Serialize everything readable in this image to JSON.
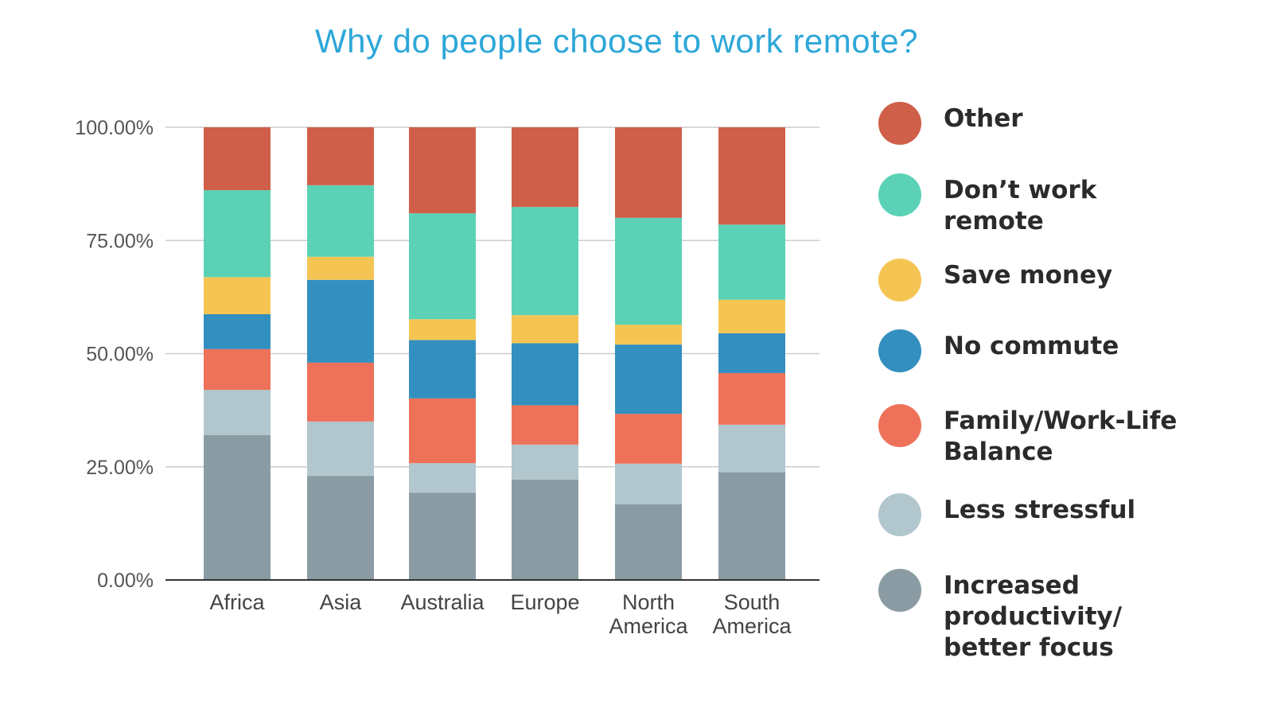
{
  "chart_data": {
    "type": "bar",
    "stacked": true,
    "title": "Why do people choose to work remote?",
    "categories": [
      "Africa",
      "Asia",
      "Australia",
      "Europe",
      "North\nAmerica",
      "South\nAmerica"
    ],
    "ylim": [
      0,
      100
    ],
    "yticks": [
      0,
      25,
      50,
      75,
      100
    ],
    "ytick_labels": [
      "0.00%",
      "25.00%",
      "50.00%",
      "75.00%",
      "100.00%"
    ],
    "xlabel": "",
    "ylabel": "",
    "grid": true,
    "legend_position": "right",
    "series": [
      {
        "name": "Increased productivity/ better focus",
        "legend_lines": [
          "Increased",
          "productivity/",
          "better focus"
        ],
        "color": "#8a9ba3",
        "values": [
          32,
          23,
          19.3,
          22.2,
          16.7,
          23.8
        ]
      },
      {
        "name": "Less stressful",
        "legend_lines": [
          "Less stressful"
        ],
        "color": "#b1c6cd",
        "values": [
          10,
          12,
          6.5,
          7.7,
          9,
          10.5
        ]
      },
      {
        "name": "Family/Work-Life Balance",
        "legend_lines": [
          "Family/Work-Life",
          "Balance"
        ],
        "color": "#ee7159",
        "values": [
          9,
          13,
          14.3,
          8.7,
          11,
          11.4
        ]
      },
      {
        "name": "No commute",
        "legend_lines": [
          "No commute"
        ],
        "color": "#338fbf",
        "values": [
          7.7,
          18.3,
          12.9,
          13.7,
          15.3,
          8.8
        ]
      },
      {
        "name": "Save money",
        "legend_lines": [
          "Save money"
        ],
        "color": "#f5c554",
        "values": [
          8.2,
          5.1,
          4.6,
          6.2,
          4.4,
          7.4
        ]
      },
      {
        "name": "Don’t work remote",
        "legend_lines": [
          "Don’t work",
          "remote"
        ],
        "color": "#5bd2b5",
        "values": [
          19.2,
          15.8,
          23.4,
          23.9,
          23.6,
          16.6
        ]
      },
      {
        "name": "Other",
        "legend_lines": [
          "Other"
        ],
        "color": "#cf5f48",
        "values": [
          13.9,
          12.8,
          19,
          17.6,
          20,
          21.5
        ]
      }
    ]
  }
}
